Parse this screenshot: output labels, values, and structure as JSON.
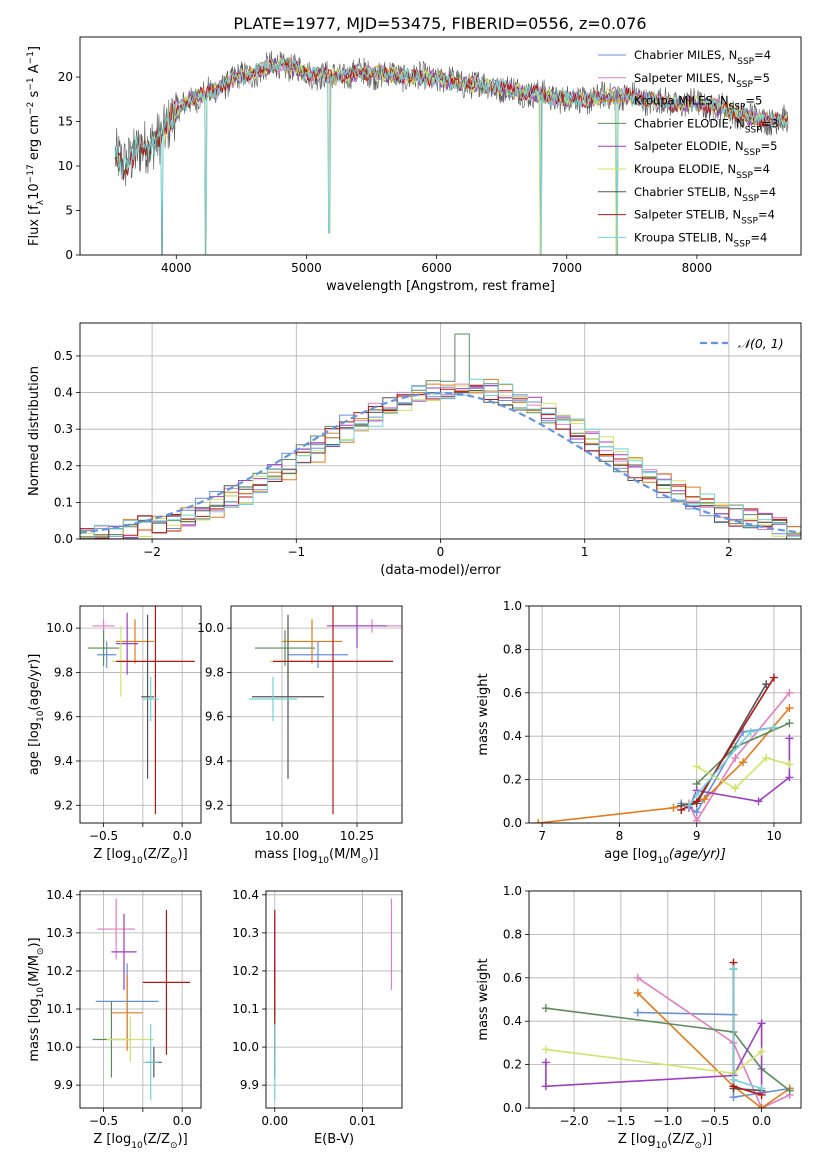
{
  "figure": {
    "title": "PLATE=1977, MJD=53475, FIBERID=0556, z=0.076"
  },
  "colors": {
    "s0": "#6b8fd6",
    "s1": "#e07fbf",
    "s2": "#e07b1f",
    "s3": "#5e8a5e",
    "s4": "#9b3fbf",
    "s5": "#cfe36a",
    "s6": "#555555",
    "s7": "#b01818",
    "s8": "#74d3d8",
    "gauss": "#6495dd",
    "grid": "#b0b0b0"
  },
  "chart_data": [
    {
      "id": "spectrum",
      "type": "line",
      "xlabel": "wavelength [Angstrom, rest frame]",
      "ylabel": "Flux [f",
      "ylabel_sub": "λ",
      "ylabel_rest": "10",
      "ylabel_sup": "−17",
      "ylabel_tail": " erg cm",
      "ylabel_sup2": "−2",
      "ylabel_tail2": " s",
      "ylabel_sup3": "−1",
      "ylabel_tail3": " A",
      "ylabel_sup4": "−1",
      "ylabel_end": "]",
      "xlim": [
        3260,
        8800
      ],
      "ylim": [
        0,
        24.5
      ],
      "xticks": [
        4000,
        5000,
        6000,
        7000,
        8000
      ],
      "yticks": [
        0,
        5,
        10,
        15,
        20
      ],
      "legend_position": "top-right",
      "legend": [
        {
          "label": "Chabrier MILES, N",
          "sub": "SSP",
          "val": "=4"
        },
        {
          "label": "Salpeter MILES, N",
          "sub": "SSP",
          "val": "=5"
        },
        {
          "label": "Kroupa MILES, N",
          "sub": "SSP",
          "val": "=5"
        },
        {
          "label": "Chabrier ELODIE, N",
          "sub": "SSP",
          "val": "=3"
        },
        {
          "label": "Salpeter ELODIE, N",
          "sub": "SSP",
          "val": "=5"
        },
        {
          "label": "Kroupa ELODIE, N",
          "sub": "SSP",
          "val": "=4"
        },
        {
          "label": "Chabrier STELIB, N",
          "sub": "SSP",
          "val": "=4"
        },
        {
          "label": "Salpeter STELIB, N",
          "sub": "SSP",
          "val": "=4"
        },
        {
          "label": "Kroupa STELIB, N",
          "sub": "SSP",
          "val": "=4"
        }
      ],
      "continuum": [
        [
          3530,
          11
        ],
        [
          3600,
          10
        ],
        [
          3700,
          12
        ],
        [
          3800,
          12
        ],
        [
          3900,
          14
        ],
        [
          4000,
          16
        ],
        [
          4100,
          17.5
        ],
        [
          4200,
          18
        ],
        [
          4300,
          18.5
        ],
        [
          4400,
          19.5
        ],
        [
          4500,
          20
        ],
        [
          4600,
          20.5
        ],
        [
          4700,
          21
        ],
        [
          4800,
          21.5
        ],
        [
          4900,
          21
        ],
        [
          5000,
          20.5
        ],
        [
          5200,
          20
        ],
        [
          5400,
          20.5
        ],
        [
          5600,
          20.3
        ],
        [
          5800,
          20
        ],
        [
          6000,
          19.8
        ],
        [
          6200,
          19.3
        ],
        [
          6400,
          19
        ],
        [
          6600,
          18.5
        ],
        [
          6800,
          18
        ],
        [
          7000,
          17.5
        ],
        [
          7200,
          17.5
        ],
        [
          7400,
          18
        ],
        [
          7600,
          17.5
        ],
        [
          7800,
          17
        ],
        [
          8000,
          17
        ],
        [
          8200,
          16.5
        ],
        [
          8400,
          15.5
        ],
        [
          8700,
          15
        ]
      ],
      "dips": [
        [
          3890,
          0
        ],
        [
          4227,
          0
        ],
        [
          5175,
          2.5
        ],
        [
          6800,
          0
        ],
        [
          7385,
          0
        ]
      ]
    },
    {
      "id": "residuals",
      "type": "bar",
      "xlabel": "(data-model)/error",
      "ylabel": "Normed distribution",
      "xlim": [
        -2.5,
        2.5
      ],
      "ylim": [
        0,
        0.59
      ],
      "xticks": [
        -2,
        -1,
        0,
        1,
        2
      ],
      "xtick_labels": [
        "−2",
        "−1",
        "0",
        "1",
        "2"
      ],
      "yticks": [
        0.0,
        0.1,
        0.2,
        0.3,
        0.4,
        0.5
      ],
      "ytick_labels": [
        "0.0",
        "0.1",
        "0.2",
        "0.3",
        "0.4",
        "0.5"
      ],
      "legend_position": "top-right",
      "legend_label": "𝒩(0, 1)",
      "bin_width": 0.1
    },
    {
      "id": "age-vs-z",
      "type": "scatter",
      "xlabel": "Z [log",
      "xlabel_sub": "10",
      "xlabel_rest": "(Z/Z",
      "xlabel_sub2": "⊙",
      "xlabel_end": ")]",
      "ylabel": "age  [log",
      "ylabel_sub": "10",
      "ylabel_rest": "(age/yr)]",
      "xlim": [
        -0.65,
        0.12
      ],
      "ylim": [
        9.12,
        10.1
      ],
      "xticks": [
        -0.5,
        -0.25,
        0.0
      ],
      "xtick_labels": [
        "−0.5",
        "",
        "0.0"
      ],
      "yticks": [
        9.2,
        9.4,
        9.6,
        9.8,
        10.0
      ],
      "ytick_labels": [
        "9.2",
        "9.4",
        "9.6",
        "9.8",
        "10.0"
      ],
      "points": [
        {
          "x": -0.48,
          "y": 9.88,
          "xe": 0.06,
          "ye": 0.06
        },
        {
          "x": -0.5,
          "y": 10.01,
          "xe": 0.07,
          "ye": 0.03
        },
        {
          "x": -0.3,
          "y": 9.94,
          "xe": 0.12,
          "ye": 0.1
        },
        {
          "x": -0.5,
          "y": 9.91,
          "xe": 0.1,
          "ye": 0.08
        },
        {
          "x": -0.35,
          "y": 9.93,
          "xe": 0.07,
          "ye": 0.14
        },
        {
          "x": -0.39,
          "y": 9.85,
          "xe": 0.06,
          "ye": 0.16
        },
        {
          "x": -0.22,
          "y": 9.69,
          "xe": 0.04,
          "ye": 0.37
        },
        {
          "x": -0.17,
          "y": 9.85,
          "xe": 0.25,
          "ye": 0.69
        },
        {
          "x": -0.2,
          "y": 9.68,
          "xe": 0.05,
          "ye": 0.1
        }
      ]
    },
    {
      "id": "age-vs-mass",
      "type": "scatter",
      "xlabel": "mass [log",
      "xlabel_sub": "10",
      "xlabel_rest": "(M/M",
      "xlabel_sub2": "⊙",
      "xlabel_end": ")]",
      "xlim": [
        9.83,
        10.4
      ],
      "ylim": [
        9.12,
        10.1
      ],
      "xticks": [
        10.0,
        10.25
      ],
      "xtick_labels": [
        "10.00",
        "10.25"
      ],
      "yticks": [
        9.2,
        9.4,
        9.6,
        9.8,
        10.0
      ],
      "ytick_labels": [
        "9.2",
        "9.4",
        "9.6",
        "9.8",
        "10.0"
      ],
      "points": [
        {
          "x": 10.12,
          "y": 9.88,
          "xe": 0.1,
          "ye": 0.06
        },
        {
          "x": 10.3,
          "y": 10.01,
          "xe": 0.12,
          "ye": 0.03
        },
        {
          "x": 10.1,
          "y": 9.94,
          "xe": 0.1,
          "ye": 0.1
        },
        {
          "x": 10.01,
          "y": 9.91,
          "xe": 0.1,
          "ye": 0.08
        },
        {
          "x": 10.25,
          "y": 10.01,
          "xe": 0.1,
          "ye": 0.1
        },
        {
          "x": 10.02,
          "y": 9.85,
          "xe": 0.06,
          "ye": 0.16
        },
        {
          "x": 10.02,
          "y": 9.69,
          "xe": 0.12,
          "ye": 0.37
        },
        {
          "x": 10.17,
          "y": 9.85,
          "xe": 0.2,
          "ye": 0.69
        },
        {
          "x": 9.97,
          "y": 9.68,
          "xe": 0.08,
          "ye": 0.1
        }
      ]
    },
    {
      "id": "weight-vs-age",
      "type": "line",
      "xlabel": "age  [log",
      "xlabel_sub": "10",
      "xlabel_rest": "(age/yr)]",
      "ylabel": "mass weight",
      "xlim": [
        6.83,
        10.35
      ],
      "ylim": [
        0,
        1
      ],
      "xticks": [
        7,
        8,
        9,
        10
      ],
      "xtick_labels": [
        "7",
        "8",
        "9",
        "10"
      ],
      "yticks": [
        0,
        0.2,
        0.4,
        0.6,
        0.8,
        1.0
      ],
      "ytick_labels": [
        "0.0",
        "0.2",
        "0.4",
        "0.6",
        "0.8",
        "1.0"
      ],
      "series": [
        [
          [
            8.8,
            0.09
          ],
          [
            9.0,
            0.05
          ],
          [
            9.6,
            0.42
          ],
          [
            10.0,
            0.44
          ]
        ],
        [
          [
            8.9,
            0.09
          ],
          [
            9.0,
            0.01
          ],
          [
            9.5,
            0.3
          ],
          [
            10.2,
            0.6
          ]
        ],
        [
          [
            6.95,
            0.0
          ],
          [
            8.7,
            0.07
          ],
          [
            9.1,
            0.11
          ],
          [
            9.6,
            0.28
          ],
          [
            10.2,
            0.53
          ]
        ],
        [
          [
            9.0,
            0.18
          ],
          [
            9.5,
            0.35
          ],
          [
            10.2,
            0.46
          ]
        ],
        [
          [
            8.9,
            0.07
          ],
          [
            9.0,
            0.15
          ],
          [
            9.8,
            0.1
          ],
          [
            10.2,
            0.21
          ],
          [
            10.2,
            0.39
          ]
        ],
        [
          [
            9.0,
            0.26
          ],
          [
            9.5,
            0.16
          ],
          [
            9.9,
            0.3
          ],
          [
            10.2,
            0.27
          ]
        ],
        [
          [
            8.8,
            0.08
          ],
          [
            9.0,
            0.09
          ],
          [
            9.9,
            0.64
          ]
        ],
        [
          [
            8.8,
            0.06
          ],
          [
            9.0,
            0.1
          ],
          [
            10.0,
            0.67
          ]
        ],
        [
          [
            8.9,
            0.08
          ],
          [
            9.0,
            0.13
          ],
          [
            9.7,
            0.42
          ],
          [
            10.0,
            0.44
          ]
        ]
      ]
    },
    {
      "id": "mass-vs-z",
      "type": "scatter",
      "xlabel": "Z [log",
      "xlabel_sub": "10",
      "xlabel_rest": "(Z/Z",
      "xlabel_sub2": "⊙",
      "xlabel_end": ")]",
      "ylabel": "mass [log",
      "ylabel_sub": "10",
      "ylabel_rest": "(M/M",
      "ylabel_sub2": "⊙",
      "ylabel_end": ")]",
      "xlim": [
        -0.65,
        0.12
      ],
      "ylim": [
        9.84,
        10.41
      ],
      "xticks": [
        -0.5,
        -0.25,
        0.0
      ],
      "xtick_labels": [
        "−0.5",
        "",
        "0.0"
      ],
      "yticks": [
        9.9,
        10.0,
        10.1,
        10.2,
        10.3,
        10.4
      ],
      "ytick_labels": [
        "9.9",
        "10.0",
        "10.1",
        "10.2",
        "10.3",
        "10.4"
      ],
      "points": [
        {
          "x": -0.35,
          "y": 10.12,
          "xe": 0.2,
          "ye": 0.1
        },
        {
          "x": -0.42,
          "y": 10.31,
          "xe": 0.12,
          "ye": 0.08
        },
        {
          "x": -0.35,
          "y": 10.09,
          "xe": 0.1,
          "ye": 0.1
        },
        {
          "x": -0.45,
          "y": 10.02,
          "xe": 0.12,
          "ye": 0.1
        },
        {
          "x": -0.37,
          "y": 10.25,
          "xe": 0.08,
          "ye": 0.1
        },
        {
          "x": -0.33,
          "y": 10.02,
          "xe": 0.15,
          "ye": 0.06
        },
        {
          "x": -0.18,
          "y": 9.96,
          "xe": 0.05,
          "ye": 0.04
        },
        {
          "x": -0.1,
          "y": 10.17,
          "xe": 0.15,
          "ye": 0.19
        },
        {
          "x": -0.2,
          "y": 9.96,
          "xe": 0.05,
          "ye": 0.1
        }
      ]
    },
    {
      "id": "mass-vs-ebv",
      "type": "scatter",
      "xlabel": "E(B-V)",
      "xlim": [
        -0.001,
        0.0145
      ],
      "ylim": [
        9.84,
        10.41
      ],
      "xticks": [
        0.0,
        0.01
      ],
      "xtick_labels": [
        "0.00",
        "0.01"
      ],
      "yticks": [
        9.9,
        10.0,
        10.1,
        10.2,
        10.3,
        10.4
      ],
      "ytick_labels": [
        "9.9",
        "10.0",
        "10.1",
        "10.2",
        "10.3",
        "10.4"
      ],
      "points": [
        {
          "x": 0.0,
          "y": 10.12,
          "xe": 0,
          "ye": 0.1
        },
        {
          "x": 0.0133,
          "y": 10.27,
          "xe": 0,
          "ye": 0.12
        },
        {
          "x": 0.0,
          "y": 10.09,
          "xe": 0,
          "ye": 0.1
        },
        {
          "x": 0.0,
          "y": 10.02,
          "xe": 0,
          "ye": 0.1
        },
        {
          "x": 0.0,
          "y": 10.25,
          "xe": 0,
          "ye": 0.1
        },
        {
          "x": 0.0,
          "y": 10.02,
          "xe": 0,
          "ye": 0.06
        },
        {
          "x": 0.0,
          "y": 9.96,
          "xe": 0,
          "ye": 0.04
        },
        {
          "x": 0.0,
          "y": 10.17,
          "xe": 0,
          "ye": 0.19
        },
        {
          "x": 0.0,
          "y": 9.96,
          "xe": 0,
          "ye": 0.1
        }
      ]
    },
    {
      "id": "weight-vs-z",
      "type": "line",
      "xlabel": "Z [log",
      "xlabel_sub": "10",
      "xlabel_rest": "(Z/Z",
      "xlabel_sub2": "⊙",
      "xlabel_end": ")]",
      "ylabel": "mass weight",
      "xlim": [
        -2.48,
        0.42
      ],
      "ylim": [
        0,
        1
      ],
      "xticks": [
        -2.0,
        -1.5,
        -1.0,
        -0.5,
        0.0
      ],
      "xtick_labels": [
        "−2.0",
        "−1.5",
        "−1.0",
        "−0.5",
        "0.0"
      ],
      "yticks": [
        0,
        0.2,
        0.4,
        0.6,
        0.8,
        1.0
      ],
      "ytick_labels": [
        "0.0",
        "0.2",
        "0.4",
        "0.6",
        "0.8",
        "1.0"
      ],
      "series": [
        [
          [
            -1.32,
            0.44
          ],
          [
            -0.3,
            0.43
          ],
          [
            -0.3,
            0.05
          ],
          [
            0.3,
            0.09
          ]
        ],
        [
          [
            -1.32,
            0.6
          ],
          [
            -0.3,
            0.3
          ],
          [
            0.0,
            0.0
          ],
          [
            0.3,
            0.06
          ]
        ],
        [
          [
            -1.32,
            0.53
          ],
          [
            -0.3,
            0.1
          ],
          [
            0.0,
            0.0
          ],
          [
            0.3,
            0.09
          ]
        ],
        [
          [
            -2.3,
            0.46
          ],
          [
            -0.3,
            0.35
          ],
          [
            0.0,
            0.18
          ],
          [
            0.3,
            0.08
          ]
        ],
        [
          [
            -2.3,
            0.21
          ],
          [
            -2.3,
            0.1
          ],
          [
            -0.3,
            0.15
          ],
          [
            0.0,
            0.39
          ],
          [
            0.0,
            0.07
          ]
        ],
        [
          [
            -2.3,
            0.27
          ],
          [
            -0.3,
            0.16
          ],
          [
            0.0,
            0.26
          ]
        ],
        [
          [
            -0.3,
            0.64
          ],
          [
            -0.3,
            0.09
          ],
          [
            0.0,
            0.08
          ]
        ],
        [
          [
            -0.3,
            0.67
          ],
          [
            -0.3,
            0.1
          ],
          [
            0.0,
            0.06
          ]
        ],
        [
          [
            -0.3,
            0.64
          ],
          [
            -0.3,
            0.13
          ],
          [
            0.0,
            0.09
          ]
        ]
      ]
    }
  ]
}
